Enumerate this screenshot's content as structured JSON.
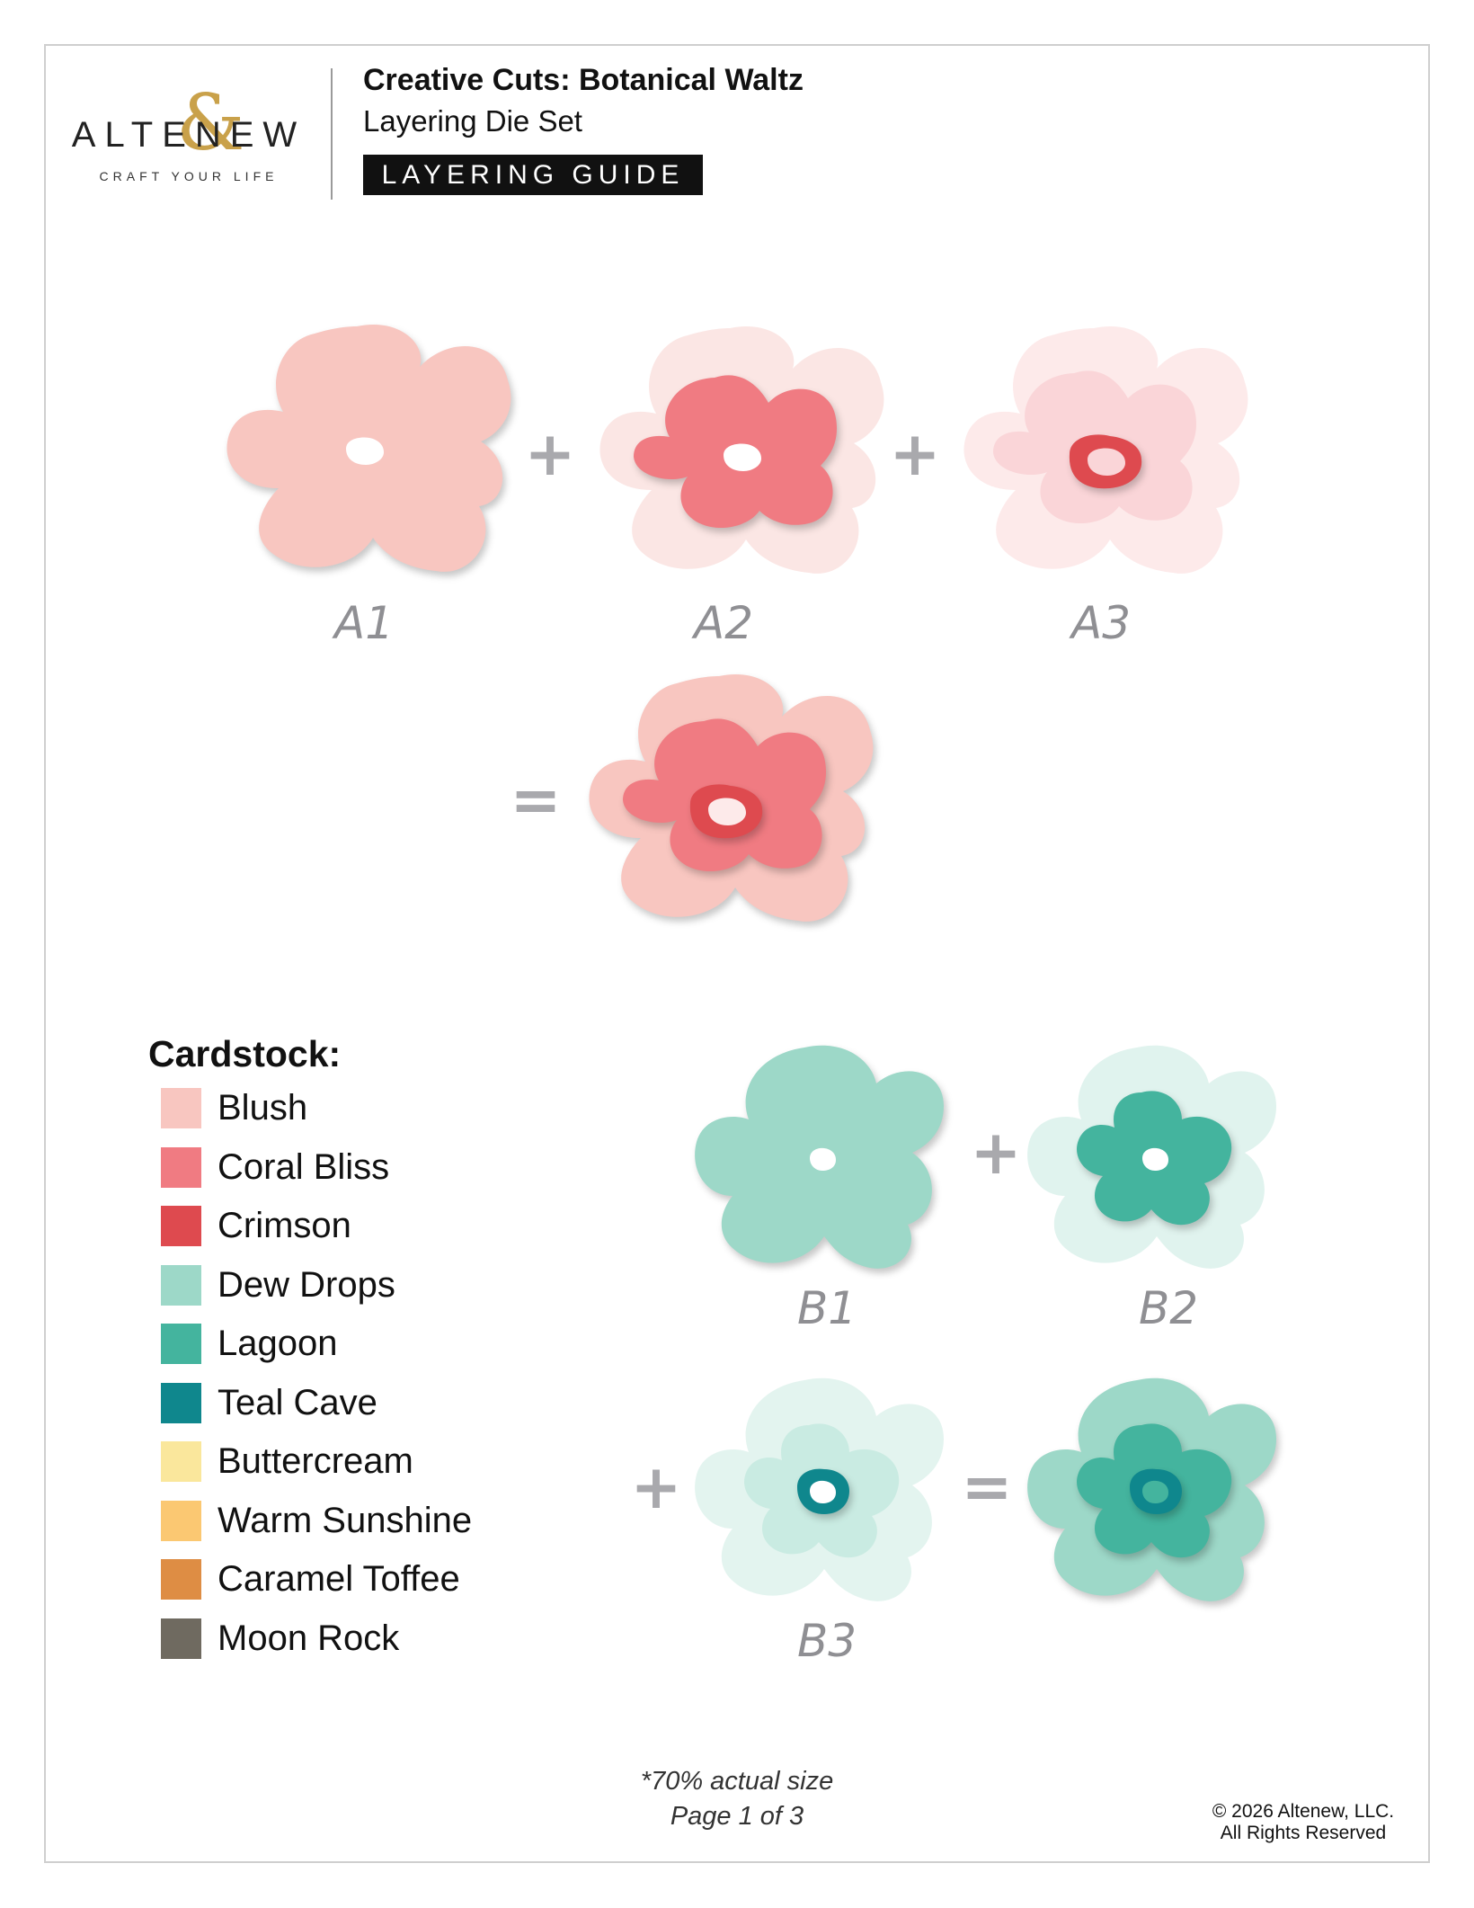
{
  "brand": {
    "name": "ALTENEW",
    "monogram": "&",
    "tagline": "CRAFT YOUR LIFE",
    "gold": "#c9a14a"
  },
  "header": {
    "title": "Creative Cuts: Botanical Waltz",
    "subtitle": "Layering Die Set",
    "guide_label": "LAYERING GUIDE"
  },
  "flower_a": {
    "layers": [
      "A1",
      "A2",
      "A3"
    ],
    "plus": "+",
    "equals": "="
  },
  "flower_b": {
    "layers": [
      "B1",
      "B2",
      "B3"
    ],
    "plus": "+",
    "equals": "="
  },
  "cardstock": {
    "heading": "Cardstock:",
    "items": [
      {
        "name": "Blush",
        "color": "#f8c6c0"
      },
      {
        "name": "Coral Bliss",
        "color": "#f07b82"
      },
      {
        "name": "Crimson",
        "color": "#de4a4f"
      },
      {
        "name": "Dew Drops",
        "color": "#9dd8c8"
      },
      {
        "name": "Lagoon",
        "color": "#44b49e"
      },
      {
        "name": "Teal Cave",
        "color": "#0f878d"
      },
      {
        "name": "Buttercream",
        "color": "#fae79c"
      },
      {
        "name": "Warm Sunshine",
        "color": "#fbc872"
      },
      {
        "name": "Caramel Toffee",
        "color": "#de8d44"
      },
      {
        "name": "Moon Rock",
        "color": "#6f6a60"
      }
    ]
  },
  "footer": {
    "scale_note": "*70% actual size",
    "page": "Page 1 of 3",
    "copyright": "© 2026 Altenew, LLC.",
    "rights": "All Rights Reserved"
  }
}
